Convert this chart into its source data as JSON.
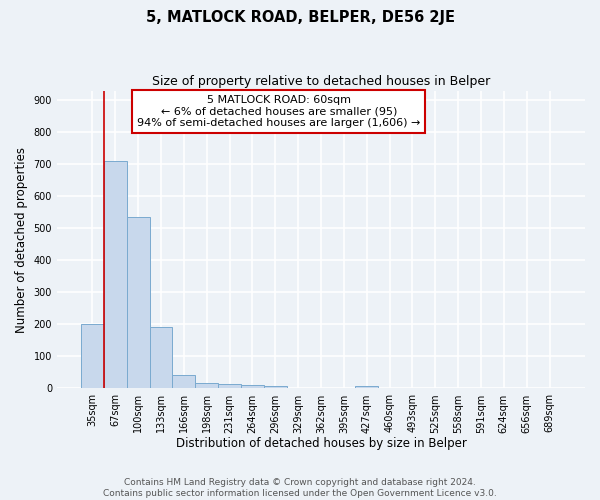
{
  "title": "5, MATLOCK ROAD, BELPER, DE56 2JE",
  "subtitle": "Size of property relative to detached houses in Belper",
  "xlabel": "Distribution of detached houses by size in Belper",
  "ylabel": "Number of detached properties",
  "bar_labels": [
    "35sqm",
    "67sqm",
    "100sqm",
    "133sqm",
    "166sqm",
    "198sqm",
    "231sqm",
    "264sqm",
    "296sqm",
    "329sqm",
    "362sqm",
    "395sqm",
    "427sqm",
    "460sqm",
    "493sqm",
    "525sqm",
    "558sqm",
    "591sqm",
    "624sqm",
    "656sqm",
    "689sqm"
  ],
  "bar_values": [
    200,
    710,
    535,
    193,
    43,
    18,
    13,
    10,
    8,
    0,
    0,
    0,
    7,
    0,
    0,
    0,
    0,
    0,
    0,
    0,
    0
  ],
  "bar_color": "#c8d8ec",
  "bar_edge_color": "#7aaacf",
  "annotation_line0": "5 MATLOCK ROAD: 60sqm",
  "annotation_line1": "← 6% of detached houses are smaller (95)",
  "annotation_line2": "94% of semi-detached houses are larger (1,606) →",
  "annotation_box_color": "#ffffff",
  "annotation_box_edge": "#cc0000",
  "vline_color": "#cc0000",
  "ylim": [
    0,
    930
  ],
  "yticks": [
    0,
    100,
    200,
    300,
    400,
    500,
    600,
    700,
    800,
    900
  ],
  "bg_color": "#edf2f7",
  "grid_color": "#ffffff",
  "title_fontsize": 10.5,
  "subtitle_fontsize": 9,
  "axis_label_fontsize": 8.5,
  "tick_fontsize": 7,
  "annotation_fontsize": 8,
  "footer1": "Contains HM Land Registry data © Crown copyright and database right 2024.",
  "footer2": "Contains public sector information licensed under the Open Government Licence v3.0.",
  "footer_fontsize": 6.5
}
